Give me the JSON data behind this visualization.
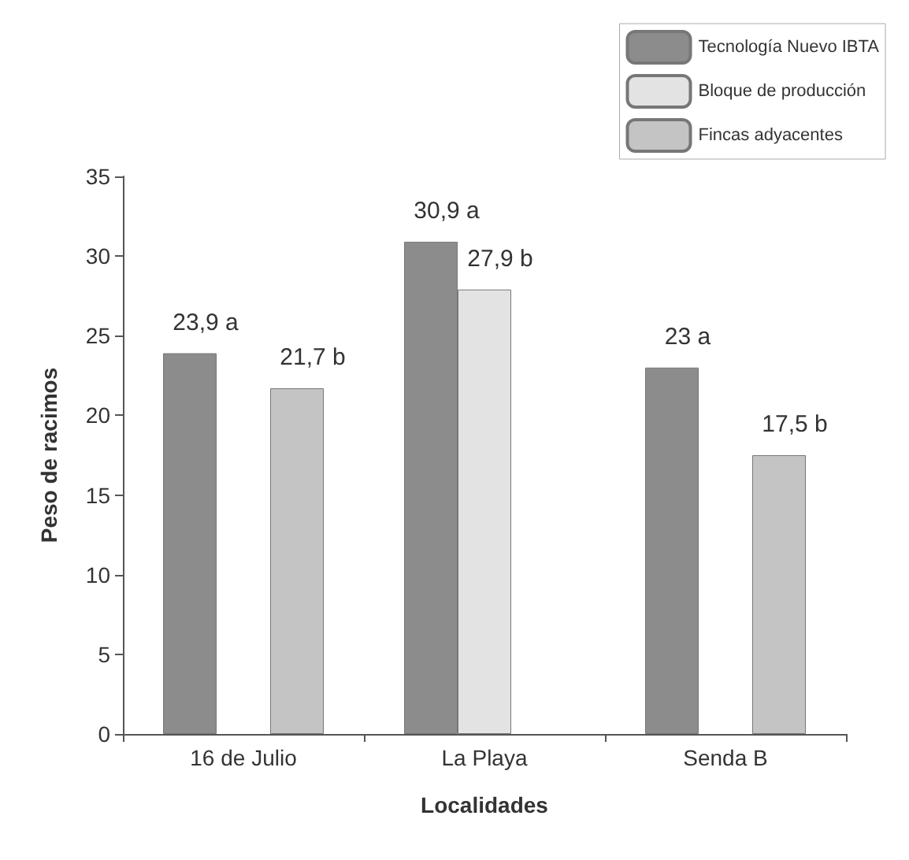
{
  "chart_data": {
    "type": "bar",
    "xlabel": "Localidades",
    "ylabel": "Peso de racimos",
    "categories": [
      "16 de Julio",
      "La Playa",
      "Senda B"
    ],
    "series": [
      {
        "name": "Tecnología Nuevo IBTA",
        "color": "#8c8c8c",
        "values": [
          23.9,
          30.9,
          23
        ],
        "value_labels": [
          "23,9 a",
          "30,9 a",
          "23 a"
        ]
      },
      {
        "name": "Bloque de producción",
        "color": "#e3e3e3",
        "values": [
          null,
          27.9,
          null
        ],
        "value_labels": [
          null,
          "27,9 b",
          null
        ]
      },
      {
        "name": "Fincas adyacentes",
        "color": "#c4c4c4",
        "values": [
          21.7,
          null,
          17.5
        ],
        "value_labels": [
          "21,7 b",
          null,
          "17,5 b"
        ]
      }
    ],
    "ylim": [
      0,
      35
    ],
    "yticks": [
      0,
      5,
      10,
      15,
      20,
      25,
      30,
      35
    ],
    "grid": false,
    "legend": "top right"
  }
}
